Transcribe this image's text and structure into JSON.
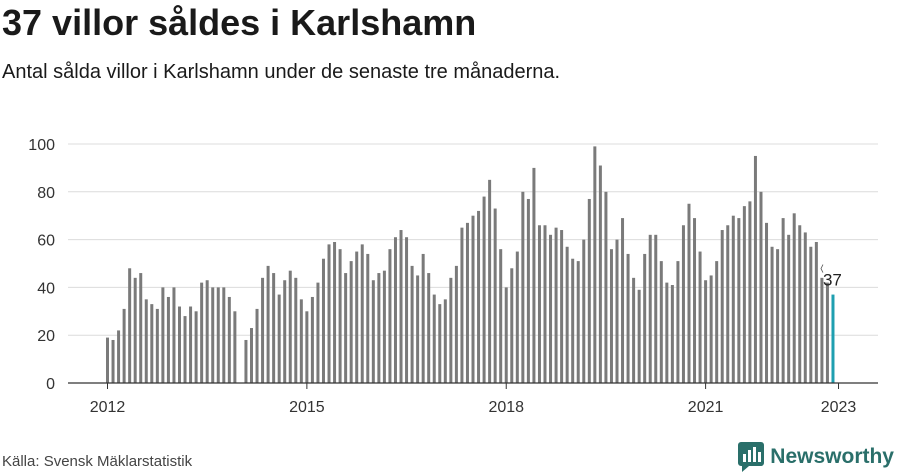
{
  "header": {
    "title": "37 villor såldes i Karlshamn",
    "subtitle": "Antal sålda villor i Karlshamn under de senaste tre månaderna."
  },
  "footer": {
    "source": "Källa: Svensk Mäklarstatistik",
    "brand": "Newsworthy"
  },
  "colors": {
    "bar": "#7a7a7a",
    "highlight": "#1f9fb0",
    "grid": "#dcdcdc",
    "brand": "#2a6f6a"
  },
  "chart_data": {
    "type": "bar",
    "title": "",
    "xlabel": "",
    "ylabel": "",
    "ylim": [
      0,
      100
    ],
    "yticks": [
      0,
      20,
      40,
      60,
      80,
      100
    ],
    "x_ticks": [
      "2012",
      "2015",
      "2018",
      "2021",
      "2023"
    ],
    "x_tick_positions": [
      0,
      36,
      72,
      108,
      132
    ],
    "grid": true,
    "highlight_label": "37",
    "values": [
      19,
      18,
      22,
      31,
      48,
      44,
      46,
      35,
      33,
      31,
      40,
      36,
      40,
      32,
      28,
      32,
      30,
      42,
      43,
      40,
      40,
      40,
      36,
      30,
      null,
      18,
      23,
      31,
      44,
      49,
      46,
      37,
      43,
      47,
      44,
      35,
      30,
      36,
      42,
      52,
      58,
      59,
      56,
      46,
      51,
      55,
      58,
      54,
      43,
      46,
      47,
      56,
      61,
      64,
      61,
      49,
      45,
      54,
      46,
      37,
      33,
      35,
      44,
      49,
      65,
      67,
      70,
      72,
      78,
      85,
      73,
      56,
      40,
      48,
      55,
      80,
      77,
      90,
      66,
      66,
      62,
      65,
      64,
      57,
      52,
      51,
      60,
      77,
      99,
      91,
      80,
      56,
      60,
      69,
      54,
      44,
      39,
      54,
      62,
      62,
      51,
      42,
      41,
      51,
      66,
      75,
      69,
      55,
      43,
      45,
      51,
      64,
      66,
      70,
      69,
      74,
      76,
      95,
      80,
      67,
      57,
      56,
      69,
      62,
      71,
      66,
      63,
      57,
      59,
      44,
      42,
      37
    ]
  }
}
